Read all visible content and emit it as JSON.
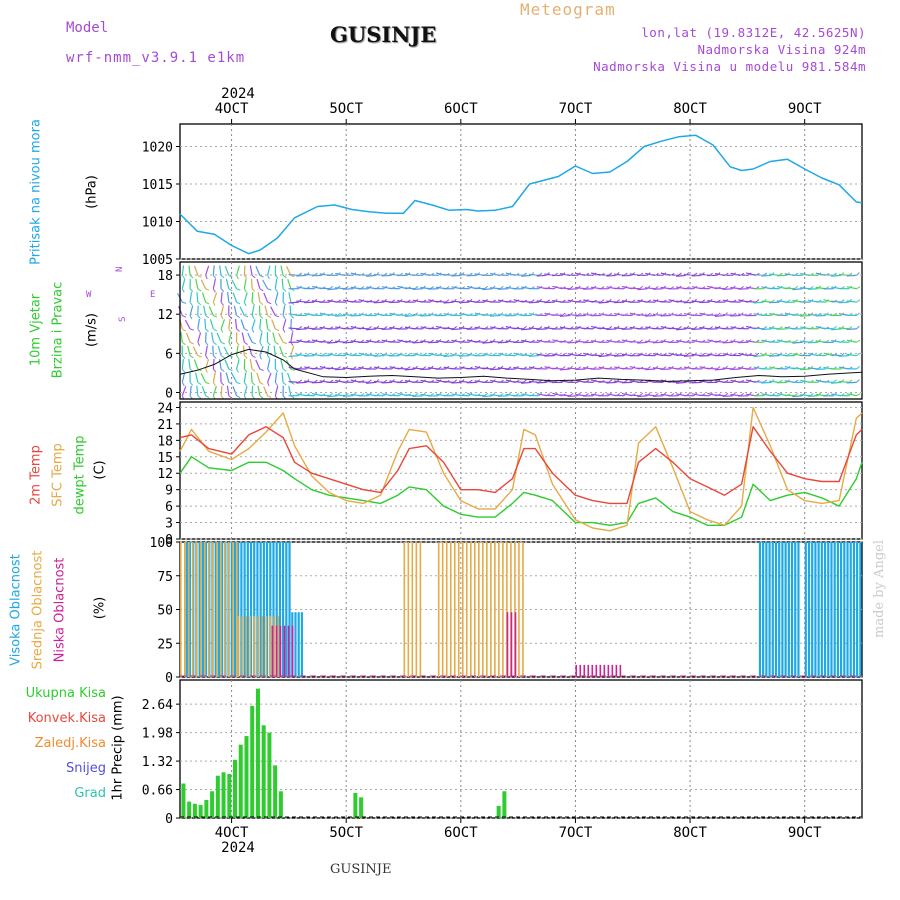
{
  "header": {
    "model_label": "Model",
    "model_name": "wrf-nmm_v3.9.1 e1km",
    "location": "GUSINJE",
    "title": "Meteogram",
    "lonlat": "lon,lat (19.8312E, 42.5625N)",
    "altitude": "Nadmorska Visina 924m",
    "model_altitude": "Nadmorska Visina u modelu 981.584m"
  },
  "footer": {
    "location": "GUSINJE",
    "watermark": "made by Angel"
  },
  "time_axis": {
    "top_year": "2024",
    "bottom_year": "2024",
    "day_labels": [
      "4OCT",
      "5OCT",
      "6OCT",
      "7OCT",
      "8OCT",
      "9OCT"
    ],
    "start_day": 3.55,
    "end_day": 9.5
  },
  "panels": {
    "pressure": {
      "label": "Pritisak na nivou mora",
      "unit": "(hPa)"
    },
    "wind": {
      "label_1": "10m Vjetar",
      "label_2": "Brzina i Pravac",
      "unit": "(m/s)",
      "compass_n": "N",
      "compass_s": "S",
      "compass_w": "W",
      "compass_e": "E"
    },
    "temp": {
      "label_2m": "2m Temp",
      "label_sfc": "SFC Temp",
      "label_dew": "dewpt Temp",
      "unit": "(C)"
    },
    "cloud": {
      "label_high": "Visoka Oblacnost",
      "label_mid": "Srednja Oblacnost",
      "label_low": "Niska Oblacnost",
      "unit": "(%)"
    },
    "precip": {
      "legend": [
        "Ukupna Kisa",
        "Konvek.Kisa",
        "Zaledj.Kisa",
        "Snijeg",
        "Grad"
      ],
      "unit": "1hr Precip (mm)"
    }
  },
  "colors": {
    "pressure": "#1ea8e6",
    "temp2m": "#e8483c",
    "sfc": "#e6aa46",
    "dew": "#2ecc2e",
    "cloud_high": "#1ea8e6",
    "cloud_mid": "#e6aa46",
    "cloud_low": "#cc2299",
    "precip": "#2ecc2e",
    "conv": "#e8483c",
    "frz": "#f08c30",
    "snow": "#5050dd",
    "hail": "#2ec4b0"
  },
  "chart_data": [
    {
      "type": "line",
      "name": "pressure",
      "ylabel": "Pritisak na nivou mora (hPa)",
      "yticks": [
        1005,
        1010,
        1015,
        1020
      ],
      "ylim": [
        1005,
        1023
      ],
      "series": [
        {
          "name": "Pritisak na nivou mora",
          "x": [
            3.55,
            3.7,
            3.85,
            4.0,
            4.15,
            4.25,
            4.4,
            4.55,
            4.75,
            4.9,
            5.05,
            5.2,
            5.35,
            5.5,
            5.6,
            5.75,
            5.9,
            6.05,
            6.15,
            6.3,
            6.45,
            6.6,
            6.7,
            6.85,
            7.0,
            7.15,
            7.3,
            7.45,
            7.6,
            7.75,
            7.9,
            8.05,
            8.2,
            8.35,
            8.45,
            8.55,
            8.7,
            8.85,
            9.0,
            9.15,
            9.3,
            9.45,
            9.5
          ],
          "y": [
            1011,
            1008.7,
            1008.3,
            1006.8,
            1005.7,
            1006.2,
            1007.8,
            1010.5,
            1012,
            1012.2,
            1011.6,
            1011.3,
            1011.1,
            1011.1,
            1012.8,
            1012.2,
            1011.5,
            1011.6,
            1011.4,
            1011.5,
            1012,
            1015,
            1015.4,
            1016,
            1017.4,
            1016.4,
            1016.6,
            1018,
            1020,
            1020.7,
            1021.3,
            1021.5,
            1020.2,
            1017.3,
            1016.8,
            1017,
            1018,
            1018.3,
            1017,
            1015.8,
            1014.9,
            1012.6,
            1012.5
          ]
        }
      ]
    },
    {
      "type": "line",
      "name": "wind",
      "ylabel": "10m Vjetar Brzina i Pravac (m/s)",
      "yticks": [
        0,
        6,
        12,
        18
      ],
      "ylim": [
        -1,
        20
      ],
      "series": [
        {
          "name": "10m Vjetar",
          "x": [
            3.55,
            3.7,
            3.85,
            4.0,
            4.15,
            4.3,
            4.45,
            4.55,
            4.8,
            5.0,
            5.2,
            5.4,
            5.6,
            5.8,
            6.0,
            6.2,
            6.4,
            6.6,
            6.8,
            7.0,
            7.2,
            7.4,
            7.6,
            7.8,
            8.0,
            8.2,
            8.4,
            8.6,
            8.8,
            9.0,
            9.2,
            9.4,
            9.5
          ],
          "y": [
            2.8,
            3.4,
            4.3,
            5.8,
            6.6,
            6.2,
            5.0,
            3.6,
            2.4,
            2.3,
            2.5,
            2.6,
            2.4,
            2.2,
            2.3,
            2.5,
            2.2,
            2.0,
            1.8,
            1.9,
            2.2,
            2.0,
            1.9,
            1.7,
            1.8,
            1.9,
            2.3,
            2.6,
            2.4,
            2.5,
            2.8,
            3.0,
            3.1
          ]
        }
      ]
    },
    {
      "type": "line",
      "name": "temperature",
      "ylabel": "Temp (C)",
      "yticks": [
        0,
        3,
        6,
        9,
        12,
        15,
        18,
        21,
        24
      ],
      "ylim": [
        0,
        25
      ],
      "series": [
        {
          "name": "2m Temp",
          "x": [
            3.55,
            3.65,
            3.8,
            4.0,
            4.15,
            4.3,
            4.45,
            4.55,
            4.7,
            4.85,
            5.0,
            5.15,
            5.3,
            5.45,
            5.55,
            5.7,
            5.85,
            6.0,
            6.15,
            6.3,
            6.45,
            6.55,
            6.65,
            6.8,
            7.0,
            7.15,
            7.3,
            7.45,
            7.55,
            7.7,
            7.85,
            8.0,
            8.15,
            8.3,
            8.45,
            8.55,
            8.7,
            8.85,
            9.0,
            9.15,
            9.3,
            9.45,
            9.5
          ],
          "y": [
            18.5,
            19,
            16.5,
            15.5,
            19,
            20.5,
            18.5,
            14,
            12,
            11,
            10,
            9,
            8.5,
            12.5,
            16.5,
            17,
            14,
            9,
            9,
            8.5,
            11,
            16.5,
            16.5,
            12,
            8,
            7,
            6.5,
            6.5,
            14,
            16.5,
            14,
            11,
            9.5,
            8,
            10,
            20.5,
            16,
            12,
            11,
            10.5,
            10.5,
            19,
            20
          ]
        },
        {
          "name": "SFC Temp",
          "x": [
            3.55,
            3.65,
            3.8,
            4.0,
            4.15,
            4.3,
            4.45,
            4.55,
            4.7,
            4.85,
            5.0,
            5.15,
            5.3,
            5.45,
            5.55,
            5.7,
            5.85,
            6.0,
            6.15,
            6.3,
            6.45,
            6.55,
            6.65,
            6.8,
            7.0,
            7.15,
            7.3,
            7.45,
            7.55,
            7.7,
            7.85,
            8.0,
            8.15,
            8.3,
            8.45,
            8.55,
            8.7,
            8.85,
            9.0,
            9.15,
            9.3,
            9.45,
            9.5
          ],
          "y": [
            16,
            20,
            16,
            14.5,
            16.5,
            19.5,
            23,
            17,
            11.5,
            8.5,
            7,
            6.5,
            8,
            16,
            20,
            19.5,
            12,
            7,
            5.5,
            5.5,
            9,
            20,
            19,
            10,
            3.5,
            2,
            1.5,
            2.5,
            17.5,
            20.5,
            13,
            5,
            3.5,
            2.5,
            6,
            24,
            17,
            9,
            7,
            6.5,
            7,
            22,
            23
          ]
        },
        {
          "name": "dewpt Temp",
          "x": [
            3.55,
            3.65,
            3.8,
            4.0,
            4.15,
            4.3,
            4.45,
            4.55,
            4.7,
            4.85,
            5.0,
            5.15,
            5.3,
            5.45,
            5.55,
            5.7,
            5.85,
            6.0,
            6.15,
            6.3,
            6.45,
            6.55,
            6.65,
            6.8,
            7.0,
            7.15,
            7.3,
            7.45,
            7.55,
            7.7,
            7.85,
            8.0,
            8.15,
            8.3,
            8.45,
            8.55,
            8.7,
            8.85,
            9.0,
            9.15,
            9.3,
            9.45,
            9.5
          ],
          "y": [
            12,
            15,
            13,
            12.5,
            14,
            14,
            12.5,
            11,
            9,
            8,
            7.5,
            7,
            6.5,
            8,
            9.5,
            9,
            6,
            4.5,
            4,
            4,
            6.5,
            8.5,
            8,
            7,
            3,
            3,
            2.5,
            3,
            6.5,
            7.5,
            5,
            4,
            2.5,
            2.5,
            4,
            10,
            7,
            8,
            8.5,
            7.5,
            6,
            11,
            14
          ]
        }
      ]
    },
    {
      "type": "bar",
      "name": "cloud",
      "ylabel": "Oblacnost (%)",
      "yticks": [
        0,
        25,
        50,
        75,
        100
      ],
      "ylim": [
        0,
        100
      ],
      "series": [
        {
          "name": "Visoka Oblacnost",
          "segments": [
            {
              "from": 3.6,
              "to": 4.5,
              "value": 100
            },
            {
              "from": 4.52,
              "to": 4.62,
              "value": 48
            },
            {
              "from": 8.6,
              "to": 8.95,
              "value": 100
            },
            {
              "from": 9.0,
              "to": 9.5,
              "value": 100
            }
          ]
        },
        {
          "name": "Srednja Oblacnost",
          "segments": [
            {
              "from": 3.55,
              "to": 4.05,
              "value": 100
            },
            {
              "from": 4.05,
              "to": 4.4,
              "value": 45
            },
            {
              "from": 5.5,
              "to": 5.65,
              "value": 100
            },
            {
              "from": 5.8,
              "to": 6.55,
              "value": 100
            }
          ]
        },
        {
          "name": "Niska Oblacnost",
          "segments": [
            {
              "from": 4.35,
              "to": 4.55,
              "value": 38
            },
            {
              "from": 6.4,
              "to": 6.5,
              "value": 48
            },
            {
              "from": 7.0,
              "to": 7.4,
              "value": 9
            }
          ]
        }
      ]
    },
    {
      "type": "bar",
      "name": "precipitation",
      "ylabel": "1hr Precip (mm)",
      "yticks": [
        0,
        0.66,
        1.32,
        1.98,
        2.64
      ],
      "ylim": [
        0,
        3.2
      ],
      "series": [
        {
          "name": "Ukupna Kisa",
          "x": [
            3.58,
            3.63,
            3.68,
            3.73,
            3.78,
            3.83,
            3.88,
            3.93,
            3.98,
            4.03,
            4.08,
            4.13,
            4.18,
            4.23,
            4.28,
            4.33,
            4.38,
            4.43,
            5.08,
            5.13,
            6.33,
            6.38
          ],
          "y": [
            0.8,
            0.38,
            0.33,
            0.3,
            0.42,
            0.62,
            0.98,
            1.06,
            1.02,
            1.35,
            1.7,
            1.9,
            2.6,
            3.0,
            2.15,
            1.98,
            1.22,
            0.62,
            0.58,
            0.48,
            0.28,
            0.62
          ]
        },
        {
          "name": "Konvek.Kisa",
          "x": [],
          "y": []
        },
        {
          "name": "Zaledj.Kisa",
          "x": [],
          "y": []
        },
        {
          "name": "Snijeg",
          "x": [],
          "y": []
        },
        {
          "name": "Grad",
          "x": [],
          "y": []
        }
      ]
    }
  ]
}
